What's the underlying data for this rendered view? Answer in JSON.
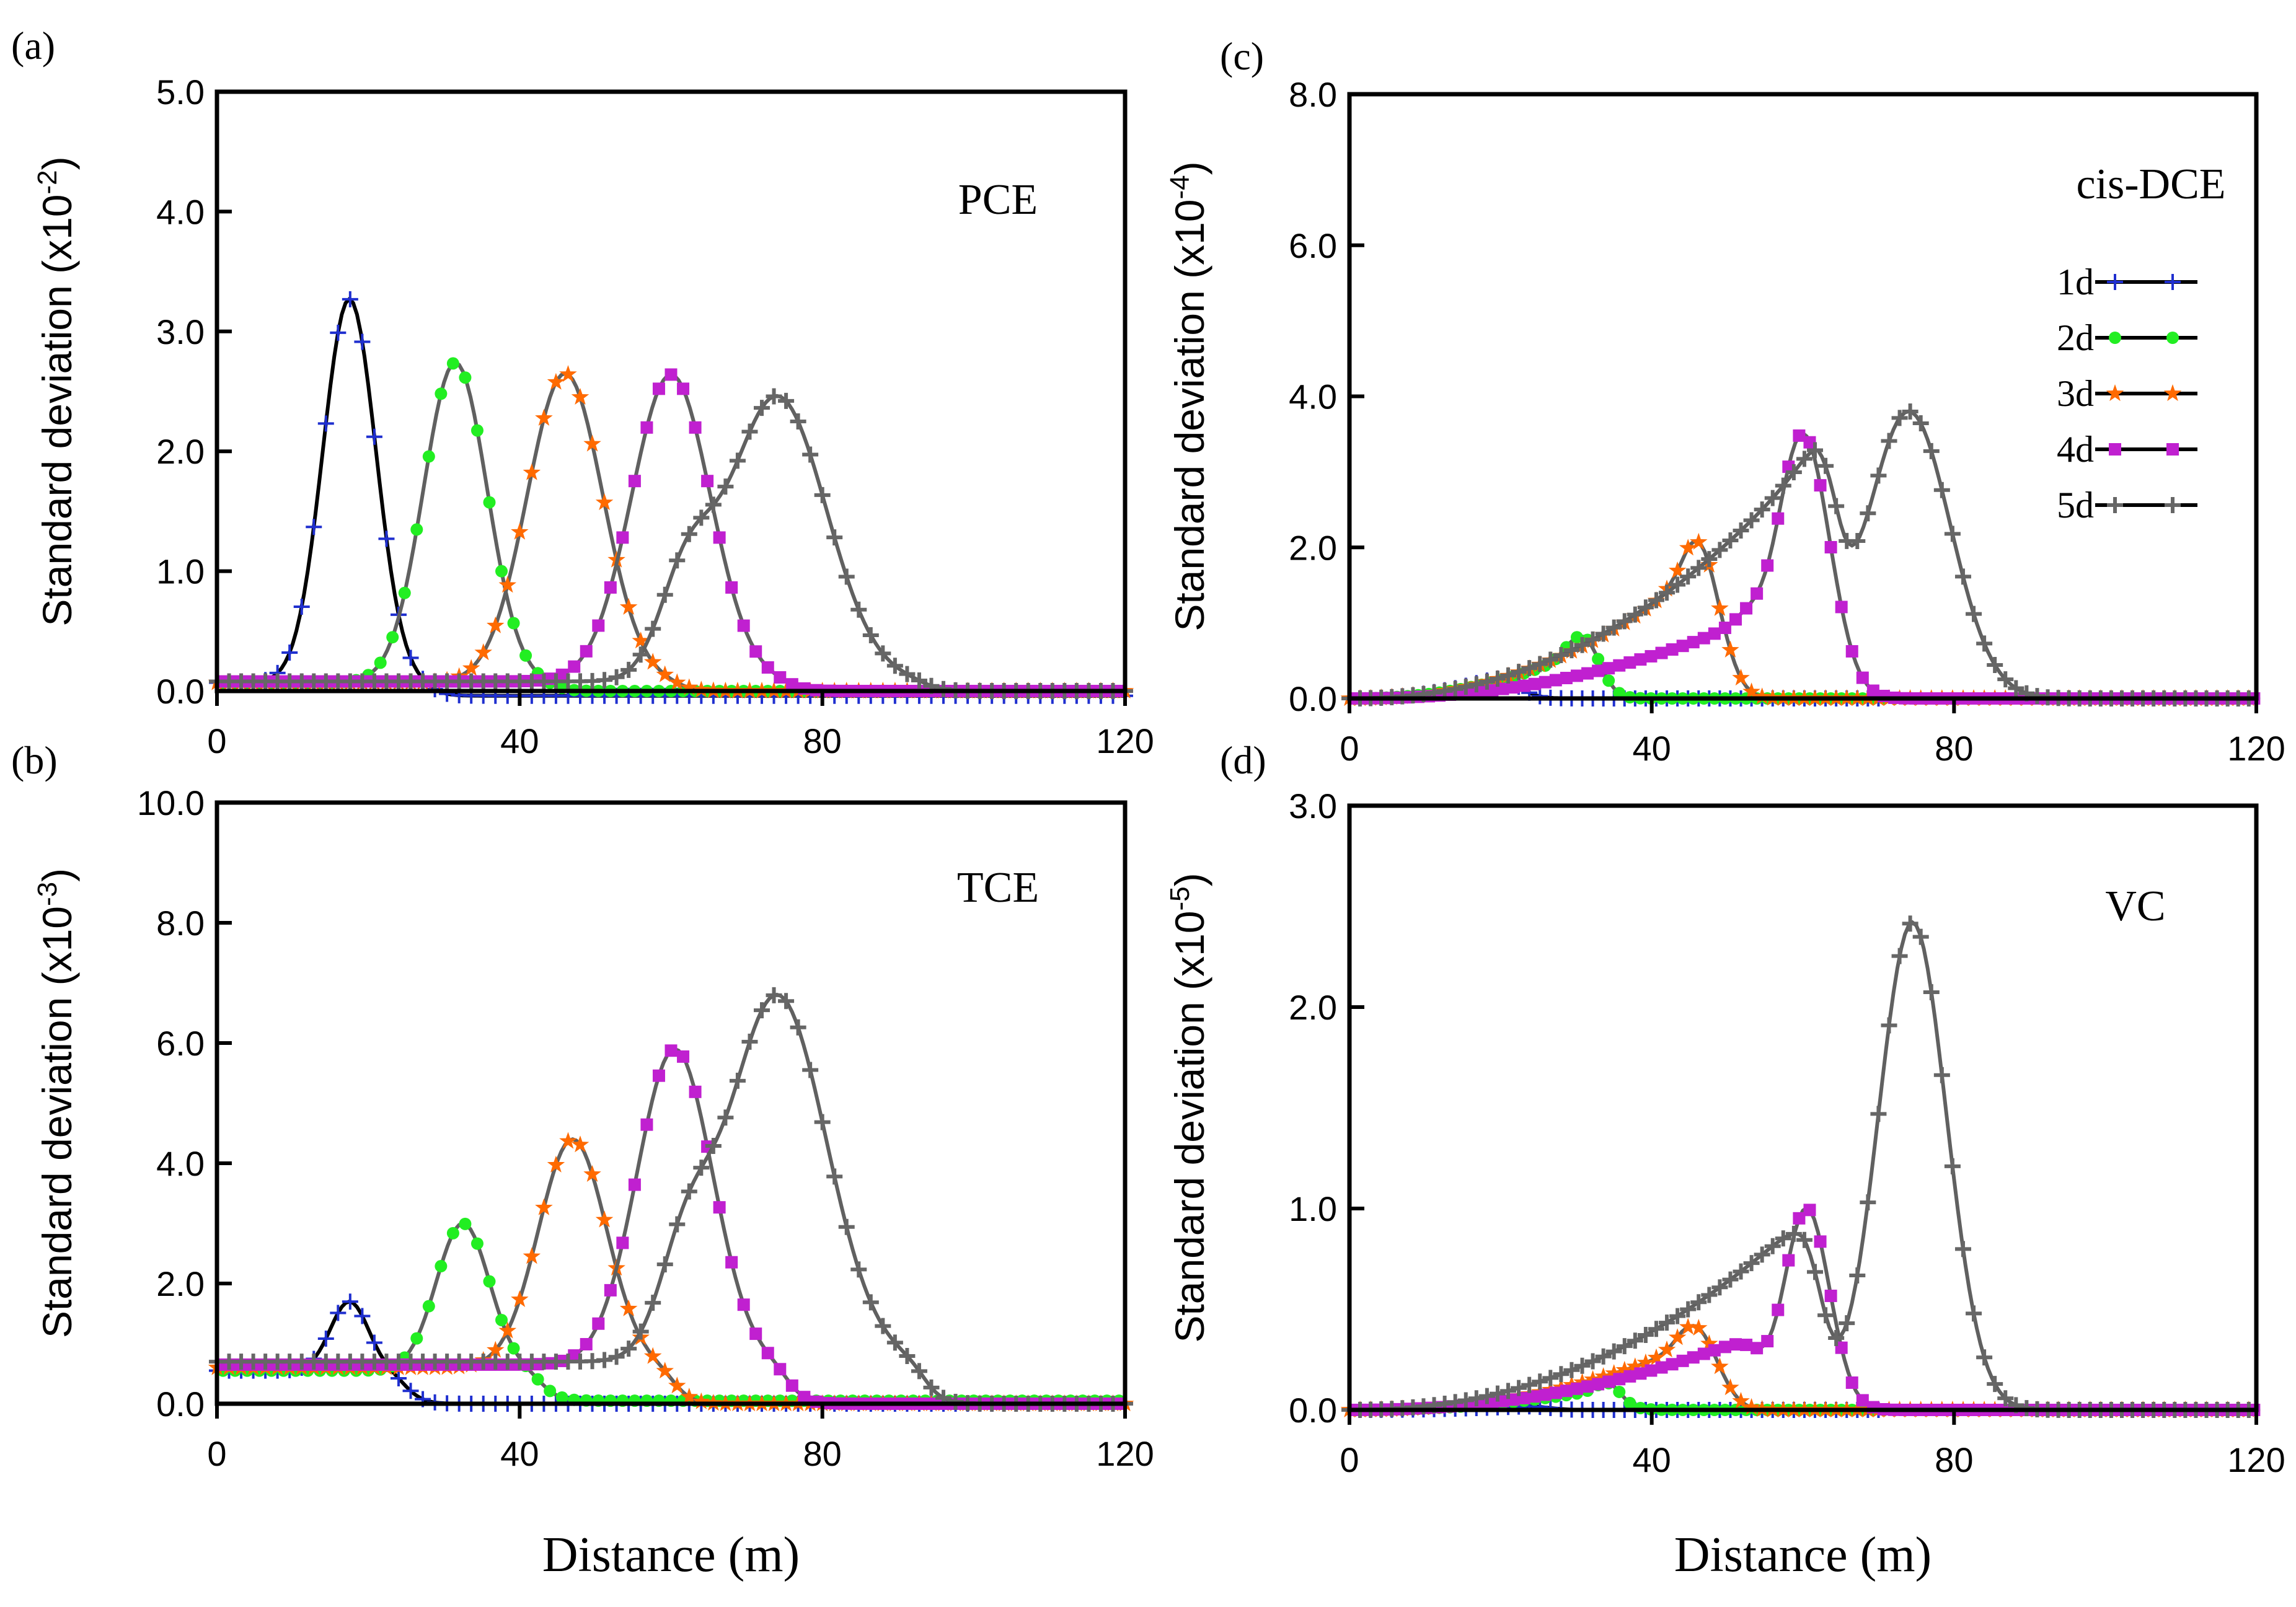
{
  "figure": {
    "xlabel": "Distance (m)"
  },
  "legend": {
    "items": [
      {
        "label": "1d",
        "color": "#1f2fcf",
        "marker": "plus"
      },
      {
        "label": "2d",
        "color": "#22ee22",
        "marker": "circle"
      },
      {
        "label": "3d",
        "color": "#ff6a00",
        "marker": "star"
      },
      {
        "label": "4d",
        "color": "#c020d0",
        "marker": "square"
      },
      {
        "label": "5d",
        "color": "#666666",
        "marker": "plus-bold"
      }
    ]
  },
  "chart_data": [
    {
      "type": "line",
      "panel_label": "(a)",
      "compound": "PCE",
      "ylabel": "Standard deviation (x10",
      "ylabel_exp": "-2",
      "ylabel_end": ")",
      "xlim": [
        0,
        120
      ],
      "ylim": [
        0,
        5
      ],
      "xticks": [
        0,
        40,
        80,
        120
      ],
      "xtick_labels": [
        "0",
        "40",
        "80",
        "120"
      ],
      "yticks": [
        0,
        1,
        2,
        3,
        4,
        5
      ],
      "ytick_labels": [
        "0.0",
        "1.0",
        "2.0",
        "3.0",
        "4.0",
        "5.0"
      ],
      "series": [
        {
          "name": "1d",
          "base": 0.07,
          "late": -0.04,
          "peaks": [
            {
              "c": 17.5,
              "h": 3.2,
              "w": 3.5
            }
          ]
        },
        {
          "name": "2d",
          "base": 0.07,
          "late": 0.0,
          "peaks": [
            {
              "c": 31.5,
              "h": 2.67,
              "w": 4.2
            }
          ]
        },
        {
          "name": "3d",
          "base": 0.07,
          "late": 0.0,
          "peaks": [
            {
              "c": 46,
              "h": 2.58,
              "w": 5
            }
          ]
        },
        {
          "name": "4d",
          "base": 0.08,
          "late": 0.0,
          "peaks": [
            {
              "c": 60,
              "h": 2.56,
              "w": 5.2
            }
          ]
        },
        {
          "name": "5d",
          "base": 0.08,
          "late": 0.0,
          "peaks": [
            {
              "c": 74,
              "h": 2.38,
              "w": 6.5
            },
            {
              "c": 62,
              "h": 0.75,
              "w": 3.5
            }
          ]
        }
      ]
    },
    {
      "type": "line",
      "panel_label": "(b)",
      "compound": "TCE",
      "ylabel": "Standard deviation (x10",
      "ylabel_exp": "-3",
      "ylabel_end": ")",
      "xlim": [
        0,
        120
      ],
      "ylim": [
        0,
        10
      ],
      "xticks": [
        0,
        40,
        80,
        120
      ],
      "xtick_labels": [
        "0",
        "40",
        "80",
        "120"
      ],
      "yticks": [
        0,
        2,
        4,
        6,
        8,
        10
      ],
      "ytick_labels": [
        "0.0",
        "2.0",
        "4.0",
        "6.0",
        "8.0",
        "10.0"
      ],
      "series": [
        {
          "name": "1d",
          "base": 0.55,
          "late": 0.0,
          "peaks": [
            {
              "c": 17.5,
              "h": 1.15,
              "w": 2.5
            }
          ]
        },
        {
          "name": "2d",
          "base": 0.55,
          "late": 0.05,
          "peaks": [
            {
              "c": 32.5,
              "h": 2.45,
              "w": 3.5
            }
          ]
        },
        {
          "name": "3d",
          "base": 0.6,
          "late": 0.0,
          "peaks": [
            {
              "c": 47,
              "h": 3.8,
              "w": 4.5
            }
          ]
        },
        {
          "name": "4d",
          "base": 0.65,
          "late": 0.0,
          "peaks": [
            {
              "c": 60.5,
              "h": 5.25,
              "w": 5
            }
          ]
        },
        {
          "name": "5d",
          "base": 0.7,
          "late": 0.0,
          "peaks": [
            {
              "c": 74,
              "h": 6.1,
              "w": 6.5
            },
            {
              "c": 62,
              "h": 1.6,
              "w": 3.5
            }
          ]
        }
      ]
    },
    {
      "type": "line",
      "panel_label": "(c)",
      "compound": "cis-DCE",
      "ylabel": "Standard deviation (x10",
      "ylabel_exp": "-4",
      "ylabel_end": ")",
      "xlim": [
        0,
        120
      ],
      "ylim": [
        0,
        8
      ],
      "xticks": [
        0,
        40,
        80,
        120
      ],
      "xtick_labels": [
        "0",
        "40",
        "80",
        "120"
      ],
      "yticks": [
        0,
        2,
        4,
        6,
        8
      ],
      "ytick_labels": [
        "0.0",
        "2.0",
        "4.0",
        "6.0",
        "8.0"
      ],
      "series": [
        {
          "name": "1d",
          "ramp_end": 20,
          "ramp_val": 0.3,
          "peaks": []
        },
        {
          "name": "2d",
          "ramp_end": 29,
          "ramp_val": 0.55,
          "peaks": [
            {
              "c": 31.5,
              "h": 0.5,
              "w": 2
            }
          ]
        },
        {
          "name": "3d",
          "ramp_end": 45,
          "ramp_val": 1.6,
          "peaks": [
            {
              "c": 47.5,
              "h": 1.0,
              "w": 2.5
            }
          ]
        },
        {
          "name": "4d",
          "ramp_end": 52,
          "ramp_val": 1.0,
          "peaks": [
            {
              "c": 60,
              "h": 3.5,
              "w": 3.5
            }
          ]
        },
        {
          "name": "5d",
          "ramp_end": 62,
          "ramp_val": 3.3,
          "peaks": [
            {
              "c": 74,
              "h": 3.8,
              "w": 5.5
            }
          ]
        }
      ]
    },
    {
      "type": "line",
      "panel_label": "(d)",
      "compound": "VC",
      "ylabel": "Standard deviation (x10",
      "ylabel_exp": "-5",
      "ylabel_end": ")",
      "xlim": [
        0,
        120
      ],
      "ylim": [
        0,
        3
      ],
      "xticks": [
        0,
        40,
        80,
        120
      ],
      "xtick_labels": [
        "0",
        "40",
        "80",
        "120"
      ],
      "yticks": [
        0,
        1,
        2,
        3
      ],
      "ytick_labels": [
        "0.0",
        "1.0",
        "2.0",
        "3.0"
      ],
      "series": [
        {
          "name": "1d",
          "ramp_end": 24,
          "ramp_val": 0.02,
          "peaks": []
        },
        {
          "name": "2d",
          "ramp_end": 33,
          "ramp_val": 0.1,
          "peaks": [
            {
              "c": 34.5,
              "h": 0.06,
              "w": 1.5
            }
          ]
        },
        {
          "name": "3d",
          "ramp_end": 44,
          "ramp_val": 0.3,
          "peaks": [
            {
              "c": 47,
              "h": 0.25,
              "w": 2.5
            }
          ]
        },
        {
          "name": "4d",
          "ramp_end": 52,
          "ramp_val": 0.35,
          "peaks": [
            {
              "c": 60.5,
              "h": 1.0,
              "w": 3
            }
          ]
        },
        {
          "name": "5d",
          "ramp_end": 60,
          "ramp_val": 0.95,
          "peaks": [
            {
              "c": 74.5,
              "h": 2.42,
              "w": 4.5
            }
          ]
        }
      ]
    }
  ]
}
